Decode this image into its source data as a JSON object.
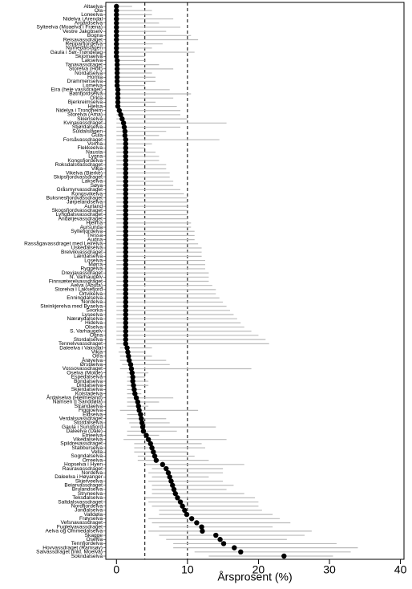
{
  "chart_data": {
    "type": "dot",
    "x_label": "Årsprosent (%)",
    "categories": [
      "Altaelva",
      "Ola",
      "Loneelva",
      "Nidelva i Arendal",
      "Argårdselva",
      "Sylteelva (Moaelva i Fræna)",
      "Vestre Jakobselv",
      "Bogna",
      "Reisavassdraget",
      "Repparfjordelva",
      "Numedalslågen",
      "Gaula i Sør-Trøndelag",
      "Skjomaelva",
      "Lakselva",
      "Tanavassdraget",
      "Storelva (Holt)",
      "Nordalselva",
      "Homla",
      "Drammenselva",
      "Lomelva",
      "Eira (hele vassdraget)",
      "Batnfjordselva",
      "Orkla",
      "Bjerkreimselva",
      "Hjelsa",
      "Nidelva i Trondheim",
      "Storelva (Ama)",
      "Skienselva",
      "Kvinavassdraget",
      "Stjørdalselva",
      "Suldalslågen",
      "Gula",
      "Forsåvassdraget",
      "Vorma",
      "Flekkeelva",
      "Nausta",
      "Lygna",
      "Kongsfjordelva",
      "Roksdalsvassdraget",
      "Vikja",
      "Vikelva (Bjerke)",
      "Skipsfjordvassdraget",
      "Lakselva",
      "Søya",
      "Gråsmyrvassdraget",
      "Kongsvikelva",
      "Buksnesfjordvassdraget",
      "Jørpelandselva",
      "Aurland",
      "Skogsfjordvassdraget",
      "Lyngdalsvassdraget",
      "Andørjevassdraget",
      "Hjelma",
      "Aursunda",
      "Syltefjordelva",
      "Tressa",
      "Audna",
      "Rassågavassdraget med Leirelva",
      "Uskedalselva",
      "Brelvikvassdraget",
      "Lærdalselva",
      "Loselva",
      "Mørra",
      "Ryggelva",
      "Drevjavassdraget",
      "N. Varhaugelv",
      "Finnsæterelvassdraget",
      "Aelva (Åbuta)",
      "Storelva i Laksefjord",
      "Ortvikelva",
      "Enningdalselva",
      "Nordelva",
      "Steinkjerelva med Byaelva",
      "Svorka",
      "Lyseelva",
      "Nærøydalselva",
      "Hidelva",
      "Olselva",
      "S. Varhaugelv",
      "Ogna",
      "Stordalselva",
      "Tennelvvassdraget",
      "Daleelva i Vaksdal",
      "Vikja",
      "Otra",
      "Årøyelva",
      "Ørstaelva",
      "Vossovassdraget",
      "Oselva (Molde)",
      "Espedalselva",
      "Bondalselva",
      "Dirdalselva",
      "Skjerdalselva",
      "Kolstadelva",
      "Årdalselva (Hjelmeland)",
      "Namsen (i Sanddøla)",
      "Strandaelva",
      "Figgjoelva",
      "Eidselva",
      "Verdalsvassdraget",
      "Stordalselva",
      "Gaula i Sunnfjord",
      "Daleelva (Dale)",
      "Etneelva",
      "Vikedalselva",
      "Spildrevassdraget",
      "Stabburselva",
      "Vella",
      "Sogndalselva",
      "Orreelva",
      "Hopselva i Hyen",
      "Rauravassdraget",
      "Nordelva",
      "Daleelva i Høyanger",
      "Skjerveelva",
      "Beiarvassdraget",
      "Brulandselva",
      "Stryneelva",
      "Teksdalselva",
      "Saltdalsvassdraget",
      "Nordfjordelva",
      "Jondalselva",
      "Valldøla",
      "Frøyselva",
      "Vefsnavassdraget",
      "Fuglelyavassdraget",
      "Aelva og Ommedalselva",
      "Skagge",
      "Oselva",
      "Tennfjordelva",
      "Hovvassdraget (Ramsøy)",
      "Salvassdraget (inkl. Moelva)",
      "Sokndalselva"
    ],
    "values": [
      0,
      0,
      0,
      0,
      0,
      0,
      0,
      0,
      0,
      0,
      0,
      0,
      0,
      0.1,
      0.1,
      0.1,
      0.1,
      0.1,
      0.1,
      0.1,
      0.2,
      0.2,
      0.2,
      0.2,
      0.2,
      0.4,
      0.6,
      0.8,
      1.0,
      1.1,
      1.2,
      1.2,
      1.3,
      1.3,
      1.3,
      1.3,
      1.3,
      1.3,
      1.3,
      1.3,
      1.3,
      1.3,
      1.3,
      1.3,
      1.3,
      1.3,
      1.3,
      1.3,
      1.3,
      1.3,
      1.3,
      1.3,
      1.3,
      1.3,
      1.3,
      1.3,
      1.3,
      1.3,
      1.3,
      1.3,
      1.3,
      1.3,
      1.3,
      1.3,
      1.3,
      1.3,
      1.3,
      1.3,
      1.3,
      1.3,
      1.3,
      1.3,
      1.3,
      1.3,
      1.3,
      1.3,
      1.3,
      1.3,
      1.3,
      1.3,
      1.3,
      1.3,
      1.5,
      1.6,
      1.7,
      1.8,
      2.0,
      2.1,
      2.2,
      2.3,
      2.3,
      2.4,
      2.5,
      2.6,
      2.8,
      3.0,
      3.1,
      3.2,
      3.4,
      3.5,
      3.6,
      3.7,
      3.8,
      4.2,
      4.5,
      4.8,
      5.0,
      5.2,
      5.4,
      5.6,
      6.5,
      7.0,
      7.3,
      7.5,
      7.7,
      7.9,
      8.1,
      8.3,
      8.6,
      9.0,
      9.3,
      9.6,
      9.9,
      10.6,
      11.3,
      12.0,
      12.1,
      14.0,
      14.6,
      15.1,
      16.6,
      17.5,
      23.6
    ],
    "lower": [
      0,
      0,
      0,
      0,
      0,
      0,
      0,
      0,
      0,
      0,
      0,
      0,
      0,
      0,
      0,
      0,
      0,
      0,
      0,
      0,
      0,
      0,
      0,
      0,
      0,
      0,
      0,
      0,
      0,
      0,
      0,
      0,
      0,
      0,
      0,
      0,
      0,
      0,
      0,
      0,
      0,
      0,
      0,
      0,
      0,
      0,
      0,
      0,
      0,
      0,
      0,
      0,
      0,
      0,
      0,
      0,
      0,
      0,
      0,
      0,
      0,
      0,
      0,
      0,
      0,
      0,
      0,
      0,
      0,
      0,
      0,
      0,
      0,
      0,
      0,
      0,
      0,
      0,
      0,
      0,
      0,
      0,
      0.5,
      0.3,
      0.5,
      0.5,
      0.8,
      0.5,
      1.5,
      1.5,
      1.5,
      1.5,
      1.5,
      1.5,
      1.5,
      1.5,
      1.5,
      0.5,
      1.5,
      1.5,
      1.8,
      2.0,
      1.5,
      1.5,
      1.0,
      2.5,
      2.5,
      2.5,
      3.0,
      3.0,
      4.0,
      5.0,
      4.5,
      5.0,
      4.5,
      5.0,
      5.0,
      5.0,
      4.0,
      4.5,
      5.0,
      6.0,
      6.0,
      4.5,
      5.0,
      6.0,
      4.5,
      6.0,
      7.0,
      8.0,
      8.0,
      11.0,
      13.0
    ],
    "upper": [
      2.2,
      5,
      5,
      8,
      6,
      9,
      7,
      10.5,
      11.5,
      6.5,
      5,
      11,
      4,
      4,
      6,
      8,
      5,
      5.5,
      5.5,
      4,
      7.5,
      10.5,
      8,
      5.5,
      8.5,
      9,
      9,
      10,
      15.5,
      9,
      7,
      6,
      14.5,
      5,
      4,
      5.5,
      6,
      6,
      7,
      7,
      7.5,
      7.5,
      8,
      8,
      9,
      9.5,
      10,
      10,
      10,
      10,
      10,
      10,
      10.5,
      10.5,
      11,
      11,
      11,
      11.5,
      12,
      12,
      12,
      12.5,
      12.5,
      12.5,
      13,
      13,
      13,
      13.5,
      14,
      14,
      14.5,
      15,
      15.5,
      16,
      16.5,
      17,
      17.5,
      18,
      19,
      20,
      21,
      21.5,
      5,
      4,
      5,
      7,
      7.5,
      19,
      4.5,
      4,
      4.5,
      4.5,
      3.5,
      3.5,
      8,
      6,
      4.5,
      11.5,
      4,
      7,
      7.5,
      14,
      8.5,
      6,
      15.5,
      12,
      12.5,
      10,
      11,
      13,
      18,
      15,
      15,
      13,
      15,
      16.5,
      15.5,
      18,
      19.5,
      20,
      20,
      20.5,
      22,
      23,
      24.5,
      22,
      27.5,
      26.5,
      24,
      31,
      34,
      33,
      30.5
    ],
    "xlim": [
      -1.5,
      40.5
    ],
    "xticks": [
      0,
      10,
      20,
      30,
      40
    ],
    "reference_lines": [
      4,
      10
    ],
    "color": "#000000",
    "bar_color": "#bbbbbb"
  }
}
